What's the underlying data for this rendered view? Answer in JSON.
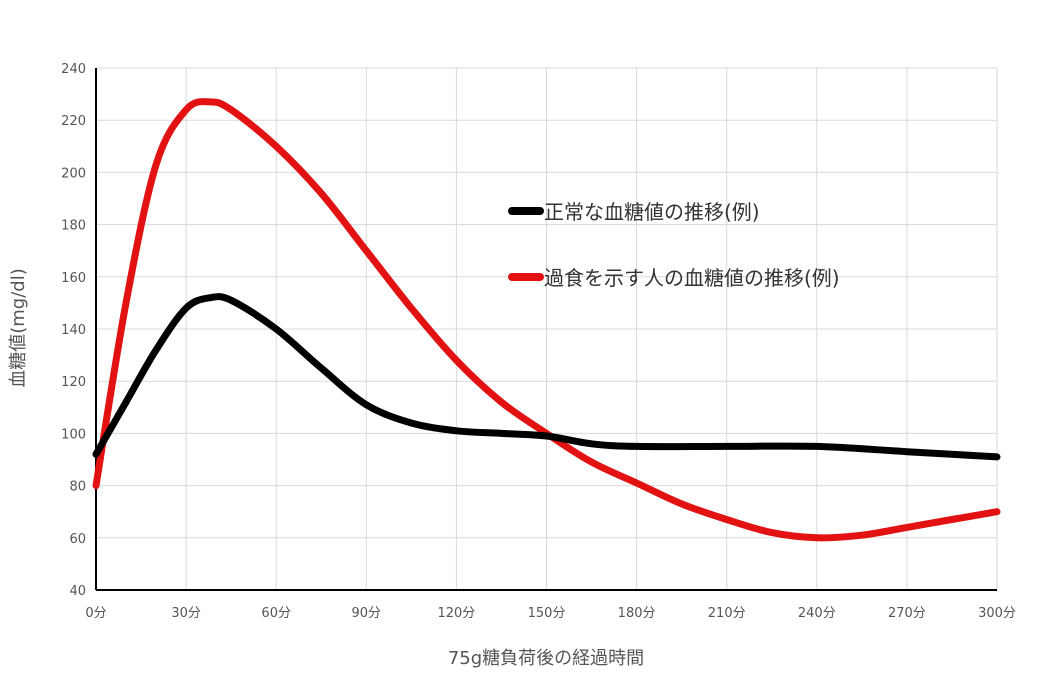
{
  "chart_data": {
    "type": "line",
    "xlabel": "75g糖負荷後の経過時間",
    "ylabel": "血糖値(mg/dl)",
    "x_unit": "分",
    "x_ticks": [
      0,
      30,
      60,
      90,
      120,
      150,
      180,
      210,
      240,
      270,
      300
    ],
    "x_tick_labels": [
      "0分",
      "30分",
      "60分",
      "90分",
      "120分",
      "150分",
      "180分",
      "210分",
      "240分",
      "270分",
      "300分"
    ],
    "y_ticks": [
      40,
      60,
      80,
      100,
      120,
      140,
      160,
      180,
      200,
      220,
      240
    ],
    "xlim": [
      0,
      300
    ],
    "ylim": [
      40,
      240
    ],
    "grid": true,
    "legend_position": "right-middle",
    "series": [
      {
        "name": "正常な血糖値の推移(例)",
        "color": "#000000",
        "x": [
          0,
          10,
          20,
          30,
          38,
          45,
          60,
          75,
          90,
          105,
          120,
          135,
          150,
          165,
          180,
          210,
          240,
          270,
          300
        ],
        "y": [
          92,
          112,
          132,
          148,
          152,
          151,
          140,
          125,
          111,
          104,
          101,
          100,
          99,
          96,
          95,
          95,
          95,
          93,
          91
        ]
      },
      {
        "name": "過食を示す人の血糖値の推移(例)",
        "color": "#e31212",
        "x": [
          0,
          10,
          20,
          30,
          38,
          45,
          60,
          75,
          90,
          105,
          120,
          135,
          150,
          165,
          180,
          195,
          210,
          225,
          240,
          255,
          270,
          285,
          300
        ],
        "y": [
          80,
          150,
          203,
          224,
          227,
          224,
          210,
          192,
          170,
          148,
          128,
          112,
          100,
          89,
          81,
          73,
          67,
          62,
          60,
          61,
          64,
          67,
          70
        ]
      }
    ]
  }
}
